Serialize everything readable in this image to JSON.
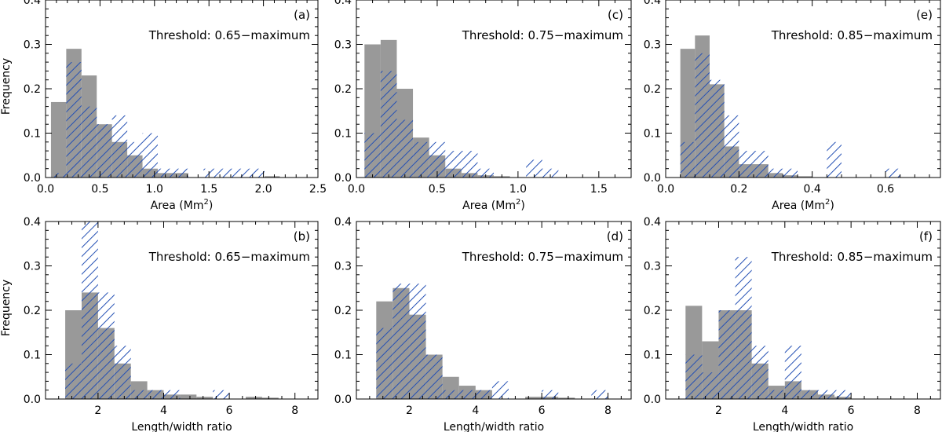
{
  "colors": {
    "gray_fill": "#999999",
    "hatch": "#2450b4",
    "axis": "#000000"
  },
  "ylabel": "Frequency",
  "ylim": [
    0,
    0.4
  ],
  "yticks": [
    "0.0",
    "0.1",
    "0.2",
    "0.3",
    "0.4"
  ],
  "chart_data": [
    {
      "id": "a",
      "panel_label": "(a)",
      "threshold": "Threshold: 0.65−maximum",
      "type": "bar",
      "xlabel": "Area (Mm",
      "xlim": [
        0,
        2.5
      ],
      "xticks": [
        0,
        0.5,
        1,
        1.5,
        2,
        2.5
      ],
      "xtick_labels": [
        "0.0",
        "0.5",
        "1.0",
        "1.5",
        "2.0",
        "2.5"
      ],
      "bin_edges": [
        0.05,
        0.19,
        0.33,
        0.47,
        0.61,
        0.75,
        0.89,
        1.03,
        1.17,
        1.31,
        1.45,
        1.59,
        1.73,
        1.87,
        2.01,
        2.15,
        2.29
      ],
      "series": [
        {
          "name": "gray",
          "values": [
            0.17,
            0.29,
            0.23,
            0.12,
            0.08,
            0.05,
            0.02,
            0.01,
            0.01,
            0,
            0,
            0,
            0,
            0,
            0.003,
            0
          ]
        },
        {
          "name": "hatched",
          "values": [
            0.01,
            0.26,
            0.16,
            0.12,
            0.14,
            0.08,
            0.1,
            0.02,
            0.02,
            0,
            0.02,
            0.02,
            0.02,
            0.02,
            0,
            0
          ]
        }
      ]
    },
    {
      "id": "c",
      "panel_label": "(c)",
      "threshold": "Threshold: 0.75−maximum",
      "type": "bar",
      "xlabel": "Area (Mm",
      "xlim": [
        0,
        1.7
      ],
      "xticks": [
        0,
        0.5,
        1,
        1.5
      ],
      "xtick_labels": [
        "0.0",
        "0.5",
        "1.0",
        "1.5"
      ],
      "bin_edges": [
        0.05,
        0.15,
        0.25,
        0.35,
        0.45,
        0.55,
        0.65,
        0.75,
        0.85,
        0.95,
        1.05,
        1.15,
        1.25,
        1.35
      ],
      "series": [
        {
          "name": "gray",
          "values": [
            0.3,
            0.31,
            0.2,
            0.09,
            0.05,
            0.02,
            0.01,
            0.005,
            0.003,
            0,
            0,
            0,
            0
          ]
        },
        {
          "name": "hatched",
          "values": [
            0.1,
            0.24,
            0.13,
            0.08,
            0.08,
            0.06,
            0.06,
            0.02,
            0,
            0,
            0.04,
            0.02,
            0
          ]
        }
      ]
    },
    {
      "id": "e",
      "panel_label": "(e)",
      "threshold": "Threshold: 0.85−maximum",
      "type": "bar",
      "xlabel": "Area (Mm",
      "xlim": [
        0,
        0.75
      ],
      "xticks": [
        0,
        0.2,
        0.4,
        0.6
      ],
      "xtick_labels": [
        "0.0",
        "0.2",
        "0.4",
        "0.6"
      ],
      "bin_edges": [
        0.04,
        0.08,
        0.12,
        0.16,
        0.2,
        0.24,
        0.28,
        0.32,
        0.36,
        0.4,
        0.44,
        0.48,
        0.52,
        0.56,
        0.6,
        0.64
      ],
      "series": [
        {
          "name": "gray",
          "values": [
            0.29,
            0.32,
            0.21,
            0.07,
            0.03,
            0.03,
            0.01,
            0.005,
            0.003,
            0,
            0,
            0,
            0,
            0,
            0
          ]
        },
        {
          "name": "hatched",
          "values": [
            0.08,
            0.28,
            0.22,
            0.14,
            0.06,
            0.06,
            0.02,
            0.02,
            0,
            0,
            0.08,
            0,
            0,
            0,
            0.02
          ]
        }
      ]
    },
    {
      "id": "b",
      "panel_label": "(b)",
      "threshold": "Threshold: 0.65−maximum",
      "type": "bar",
      "xlabel": "Length/width ratio",
      "xlim": [
        0.4,
        8.7
      ],
      "xticks": [
        2,
        4,
        6,
        8
      ],
      "xtick_labels": [
        "2",
        "4",
        "6",
        "8"
      ],
      "bin_edges": [
        1.0,
        1.5,
        2.0,
        2.5,
        3.0,
        3.5,
        4.0,
        4.5,
        5.0,
        5.5,
        6.0,
        6.5,
        7.0,
        7.5
      ],
      "series": [
        {
          "name": "gray",
          "values": [
            0.2,
            0.24,
            0.16,
            0.08,
            0.04,
            0.02,
            0.01,
            0.01,
            0.005,
            0,
            0,
            0.005,
            0.003
          ]
        },
        {
          "name": "hatched",
          "values": [
            0.08,
            0.4,
            0.24,
            0.12,
            0.02,
            0.02,
            0.02,
            0,
            0,
            0.02,
            0,
            0,
            0
          ]
        }
      ]
    },
    {
      "id": "d",
      "panel_label": "(d)",
      "threshold": "Threshold: 0.75−maximum",
      "type": "bar",
      "xlabel": "Length/width ratio",
      "xlim": [
        0.4,
        8.7
      ],
      "xticks": [
        2,
        4,
        6,
        8
      ],
      "xtick_labels": [
        "2",
        "4",
        "6",
        "8"
      ],
      "bin_edges": [
        1.0,
        1.5,
        2.0,
        2.5,
        3.0,
        3.5,
        4.0,
        4.5,
        5.0,
        5.5,
        6.0,
        6.5,
        7.0,
        7.5,
        8.0
      ],
      "series": [
        {
          "name": "gray",
          "values": [
            0.22,
            0.25,
            0.19,
            0.1,
            0.05,
            0.03,
            0.02,
            0,
            0,
            0.005,
            0.005,
            0.003,
            0,
            0
          ]
        },
        {
          "name": "hatched",
          "values": [
            0.16,
            0.26,
            0.26,
            0.1,
            0.02,
            0.02,
            0.02,
            0.04,
            0,
            0,
            0.02,
            0,
            0,
            0.02
          ]
        }
      ]
    },
    {
      "id": "f",
      "panel_label": "(f)",
      "threshold": "Threshold: 0.85−maximum",
      "type": "bar",
      "xlabel": "Length/width ratio",
      "xlim": [
        0.4,
        8.7
      ],
      "xticks": [
        2,
        4,
        6,
        8
      ],
      "xtick_labels": [
        "2",
        "4",
        "6",
        "8"
      ],
      "bin_edges": [
        1.0,
        1.5,
        2.0,
        2.5,
        3.0,
        3.5,
        4.0,
        4.5,
        5.0,
        5.5,
        6.0
      ],
      "series": [
        {
          "name": "gray",
          "values": [
            0.21,
            0.13,
            0.2,
            0.2,
            0.08,
            0.03,
            0.04,
            0.02,
            0.01,
            0.005
          ]
        },
        {
          "name": "hatched",
          "values": [
            0.1,
            0.06,
            0.2,
            0.32,
            0.12,
            0.02,
            0.12,
            0.02,
            0.02,
            0.02
          ]
        }
      ]
    }
  ]
}
